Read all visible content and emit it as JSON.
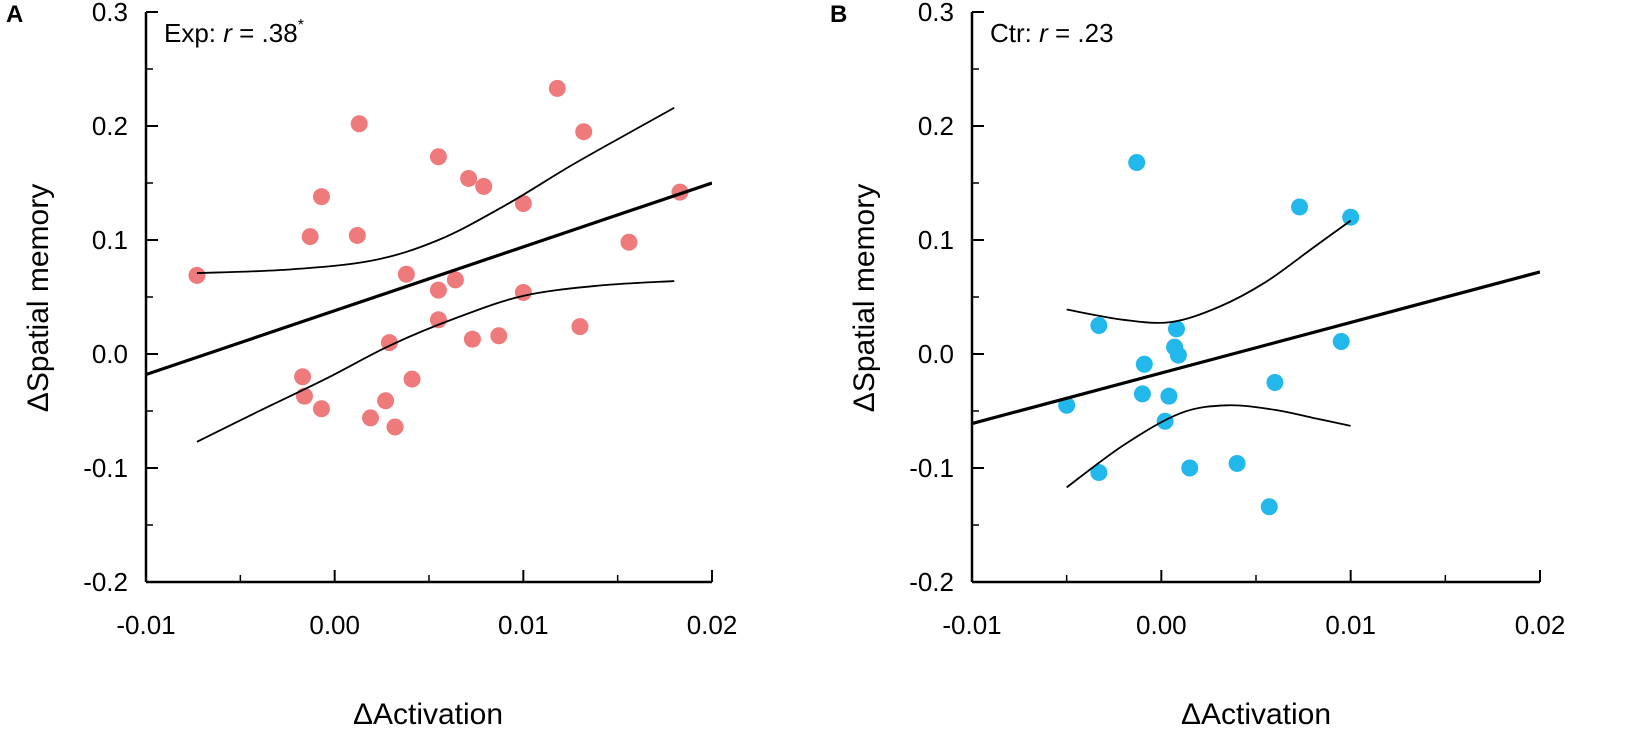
{
  "chart_data": [
    {
      "type": "scatter",
      "panel_label": "A",
      "stat_prefix": "Exp: ",
      "stat_r": "r",
      "stat_value": " = .38",
      "stat_sig": "*",
      "xlabel": "ΔActivation",
      "ylabel": "ΔSpatial memory",
      "xlim": [
        -0.01,
        0.02
      ],
      "ylim": [
        -0.2,
        0.3
      ],
      "x_ticks": [
        -0.01,
        0.0,
        0.01,
        0.02
      ],
      "x_tick_labels": [
        "-0.01",
        "0.00",
        "0.01",
        "0.02"
      ],
      "y_ticks": [
        -0.2,
        -0.1,
        0.0,
        0.1,
        0.2,
        0.3
      ],
      "y_tick_labels": [
        "-0.2",
        "-0.1",
        "0.0",
        "0.1",
        "0.2",
        "0.3"
      ],
      "point_color": "#ee7a7c",
      "points": [
        [
          -0.0073,
          0.069
        ],
        [
          -0.0013,
          0.103
        ],
        [
          -0.0007,
          0.138
        ],
        [
          0.0012,
          0.104
        ],
        [
          0.0013,
          0.202
        ],
        [
          0.0055,
          0.173
        ],
        [
          0.0071,
          0.154
        ],
        [
          0.0079,
          0.147
        ],
        [
          0.0118,
          0.233
        ],
        [
          0.0132,
          0.195
        ],
        [
          0.01,
          0.132
        ],
        [
          0.0183,
          0.142
        ],
        [
          0.0156,
          0.098
        ],
        [
          0.0038,
          0.07
        ],
        [
          0.0064,
          0.065
        ],
        [
          0.0055,
          0.056
        ],
        [
          0.01,
          0.054
        ],
        [
          0.0055,
          0.03
        ],
        [
          0.0029,
          0.01
        ],
        [
          0.0073,
          0.013
        ],
        [
          0.0087,
          0.016
        ],
        [
          0.013,
          0.024
        ],
        [
          -0.0017,
          -0.02
        ],
        [
          0.0041,
          -0.022
        ],
        [
          -0.0016,
          -0.037
        ],
        [
          -0.0007,
          -0.048
        ],
        [
          0.0027,
          -0.041
        ],
        [
          0.0019,
          -0.056
        ],
        [
          0.0032,
          -0.064
        ]
      ],
      "fit_line": [
        [
          -0.01,
          -0.018
        ],
        [
          0.02,
          0.15
        ]
      ],
      "ci_upper": [
        [
          -0.0073,
          0.071
        ],
        [
          -0.0025,
          0.074
        ],
        [
          0.002,
          0.082
        ],
        [
          0.0055,
          0.1
        ],
        [
          0.009,
          0.13
        ],
        [
          0.0125,
          0.165
        ],
        [
          0.0155,
          0.193
        ],
        [
          0.018,
          0.216
        ]
      ],
      "ci_lower": [
        [
          -0.0073,
          -0.077
        ],
        [
          -0.004,
          -0.05
        ],
        [
          -0.0005,
          -0.022
        ],
        [
          0.003,
          0.008
        ],
        [
          0.0065,
          0.032
        ],
        [
          0.01,
          0.051
        ],
        [
          0.014,
          0.06
        ],
        [
          0.018,
          0.064
        ]
      ]
    },
    {
      "type": "scatter",
      "panel_label": "B",
      "stat_prefix": "Ctr: ",
      "stat_r": "r",
      "stat_value": " = .23",
      "stat_sig": "",
      "xlabel": "ΔActivation",
      "ylabel": "ΔSpatial memory",
      "xlim": [
        -0.01,
        0.02
      ],
      "ylim": [
        -0.2,
        0.3
      ],
      "x_ticks": [
        -0.01,
        0.0,
        0.01,
        0.02
      ],
      "x_tick_labels": [
        "-0.01",
        "0.00",
        "0.01",
        "0.02"
      ],
      "y_ticks": [
        -0.2,
        -0.1,
        0.0,
        0.1,
        0.2,
        0.3
      ],
      "y_tick_labels": [
        "-0.2",
        "-0.1",
        "0.0",
        "0.1",
        "0.2",
        "0.3"
      ],
      "point_color": "#22b8ec",
      "points": [
        [
          -0.0013,
          0.168
        ],
        [
          0.0073,
          0.129
        ],
        [
          0.01,
          0.12
        ],
        [
          -0.0033,
          0.025
        ],
        [
          0.0008,
          0.022
        ],
        [
          0.0007,
          0.006
        ],
        [
          0.0009,
          -0.001
        ],
        [
          -0.0009,
          -0.009
        ],
        [
          0.0095,
          0.011
        ],
        [
          0.006,
          -0.025
        ],
        [
          -0.005,
          -0.045
        ],
        [
          -0.001,
          -0.035
        ],
        [
          0.0004,
          -0.037
        ],
        [
          0.0002,
          -0.059
        ],
        [
          0.0015,
          -0.1
        ],
        [
          0.004,
          -0.096
        ],
        [
          -0.0033,
          -0.104
        ],
        [
          0.0057,
          -0.134
        ]
      ],
      "fit_line": [
        [
          -0.01,
          -0.061
        ],
        [
          0.02,
          0.072
        ]
      ],
      "ci_upper": [
        [
          -0.005,
          0.039
        ],
        [
          -0.002,
          0.03
        ],
        [
          0.0005,
          0.028
        ],
        [
          0.003,
          0.041
        ],
        [
          0.0055,
          0.063
        ],
        [
          0.008,
          0.093
        ],
        [
          0.01,
          0.117
        ]
      ],
      "ci_lower": [
        [
          -0.005,
          -0.117
        ],
        [
          -0.002,
          -0.08
        ],
        [
          0.001,
          -0.052
        ],
        [
          0.0035,
          -0.045
        ],
        [
          0.006,
          -0.049
        ],
        [
          0.008,
          -0.056
        ],
        [
          0.01,
          -0.063
        ]
      ]
    }
  ]
}
